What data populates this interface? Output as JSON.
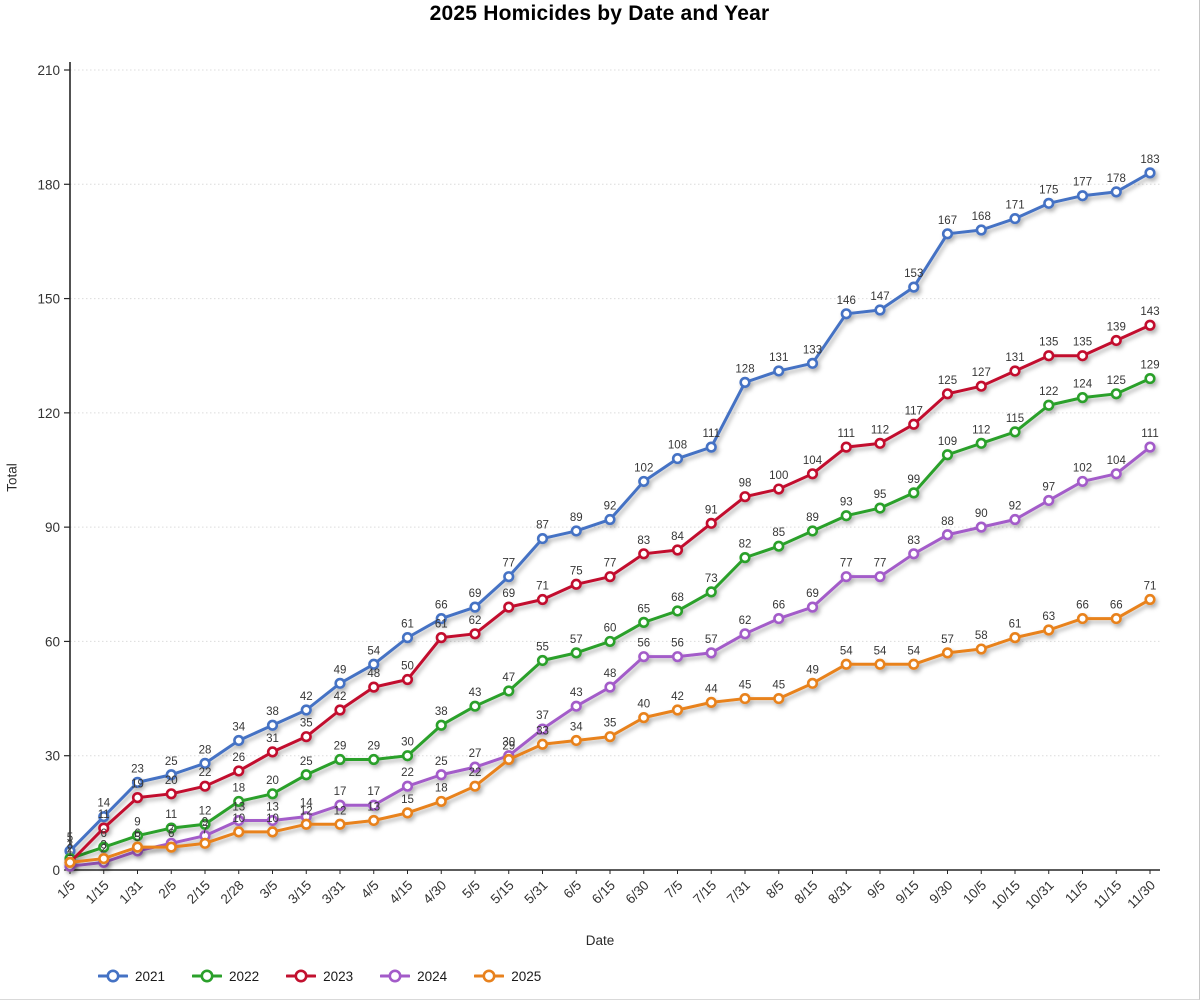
{
  "window": {
    "background": "#ffffff"
  },
  "chart_data": {
    "type": "line",
    "title": "2025 Homicides by Date and Year",
    "xlabel": "Date",
    "ylabel": "Total",
    "x_ticks": [
      "1/5",
      "1/15",
      "1/31",
      "2/5",
      "2/15",
      "2/28",
      "3/5",
      "3/15",
      "3/31",
      "4/5",
      "4/15",
      "4/30",
      "5/5",
      "5/15",
      "5/31",
      "6/5",
      "6/15",
      "6/30",
      "7/5",
      "7/15",
      "7/31",
      "8/5",
      "8/15",
      "8/31",
      "9/5",
      "9/15",
      "9/30",
      "10/5",
      "10/15",
      "10/31",
      "11/5",
      "11/15",
      "11/30"
    ],
    "y_ticks": [
      0,
      30,
      60,
      90,
      120,
      150,
      180,
      210
    ],
    "ylim": [
      0,
      210
    ],
    "grid": "horizontal-dotted",
    "legend_position": "bottom-left",
    "point_labels": "all",
    "axis_color": "#262626",
    "grid_color": "#dcdcdc",
    "tick_label_color": "#333333",
    "point_label_color": "#373737",
    "series": [
      {
        "name": "2021",
        "color": "#4472C4",
        "values": [
          5,
          14,
          23,
          25,
          28,
          34,
          38,
          42,
          49,
          54,
          61,
          66,
          69,
          77,
          87,
          89,
          92,
          102,
          108,
          111,
          128,
          131,
          133,
          146,
          147,
          153,
          167,
          168,
          171,
          175,
          177,
          178,
          183
        ]
      },
      {
        "name": "2022",
        "color": "#2BA02B",
        "values": [
          3,
          6,
          9,
          11,
          12,
          18,
          20,
          25,
          29,
          29,
          30,
          38,
          43,
          47,
          55,
          57,
          60,
          65,
          68,
          73,
          82,
          85,
          89,
          93,
          95,
          99,
          109,
          112,
          115,
          122,
          124,
          125,
          129
        ]
      },
      {
        "name": "2023",
        "color": "#C2112F",
        "values": [
          2,
          11,
          19,
          20,
          22,
          26,
          31,
          35,
          42,
          48,
          50,
          61,
          62,
          69,
          71,
          75,
          77,
          83,
          84,
          91,
          98,
          100,
          104,
          111,
          112,
          117,
          125,
          127,
          131,
          135,
          135,
          139,
          143
        ]
      },
      {
        "name": "2024",
        "color": "#A35BC9",
        "values": [
          1,
          2,
          5,
          7,
          9,
          13,
          13,
          14,
          17,
          17,
          22,
          25,
          27,
          30,
          37,
          43,
          48,
          56,
          56,
          57,
          62,
          66,
          69,
          77,
          77,
          83,
          88,
          90,
          92,
          97,
          102,
          104,
          111
        ]
      },
      {
        "name": "2025",
        "color": "#E8821E",
        "values": [
          2,
          3,
          6,
          6,
          7,
          10,
          10,
          12,
          12,
          13,
          15,
          18,
          22,
          29,
          33,
          34,
          35,
          40,
          42,
          44,
          45,
          45,
          49,
          54,
          54,
          54,
          57,
          58,
          61,
          63,
          66,
          66,
          71
        ]
      }
    ]
  }
}
